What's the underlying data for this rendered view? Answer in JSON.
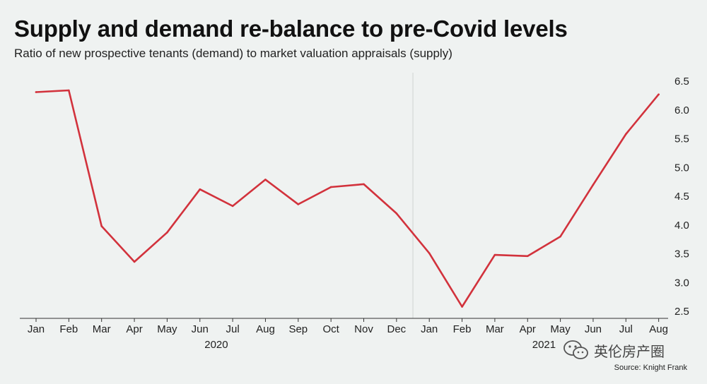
{
  "title": "Supply and demand re-balance to pre-Covid levels",
  "subtitle": "Ratio of new prospective tenants (demand) to market valuation appraisals (supply)",
  "source": "Source: Knight Frank",
  "watermark": {
    "icon": "wechat-icon",
    "text": "英伦房产圈"
  },
  "colors": {
    "line": "#d2323c",
    "background": "#eff2f1",
    "axis": "#333333",
    "divider": "#cfd3d2"
  },
  "chart_data": {
    "type": "line",
    "categories": [
      "Jan",
      "Feb",
      "Mar",
      "Apr",
      "May",
      "Jun",
      "Jul",
      "Aug",
      "Sep",
      "Oct",
      "Nov",
      "Dec",
      "Jan",
      "Feb",
      "Mar",
      "Apr",
      "May",
      "Jun",
      "Jul",
      "Aug"
    ],
    "year_groups": [
      {
        "label": "2020",
        "start": 0,
        "end": 11
      },
      {
        "label": "2021",
        "start": 12,
        "end": 19
      }
    ],
    "series": [
      {
        "values": [
          6.31,
          6.34,
          3.98,
          3.36,
          3.87,
          4.62,
          4.33,
          4.79,
          4.36,
          4.66,
          4.71,
          4.2,
          3.51,
          2.58,
          3.48,
          3.46,
          3.8,
          4.7,
          5.58,
          6.27
        ]
      }
    ],
    "ylim": [
      2.5,
      6.5
    ],
    "yticks": [
      "2.5",
      "3.0",
      "3.5",
      "4.0",
      "4.5",
      "5.0",
      "5.5",
      "6.0",
      "6.5"
    ],
    "y_axis_position": "right",
    "grid": false,
    "xlabel": "",
    "ylabel": ""
  }
}
